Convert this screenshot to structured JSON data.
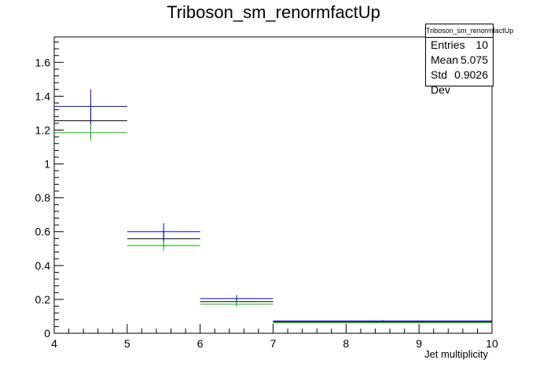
{
  "chart_data": {
    "type": "histogram",
    "title": "Triboson_sm_renormfactUp",
    "xlabel": "Jet multiplicity",
    "ylabel": "",
    "xlim": [
      4,
      10
    ],
    "ylim": [
      0,
      1.75
    ],
    "x_ticks": [
      "4",
      "5",
      "6",
      "7",
      "8",
      "9",
      "10"
    ],
    "y_ticks": [
      "0",
      "0.2",
      "0.4",
      "0.6",
      "0.8",
      "1",
      "1.2",
      "1.4",
      "1.6"
    ],
    "bins": [
      [
        4,
        5
      ],
      [
        5,
        6
      ],
      [
        6,
        7
      ],
      [
        7,
        10
      ]
    ],
    "series": [
      {
        "color": "#000000",
        "values": [
          1.255,
          0.558,
          0.187,
          0.068
        ],
        "errors": [
          0.1,
          0.05,
          0.02,
          0.005
        ]
      },
      {
        "color": "#0000ff",
        "values": [
          1.34,
          0.6,
          0.205,
          0.073
        ],
        "errors": [
          0.1,
          0.05,
          0.02,
          0.005
        ]
      },
      {
        "color": "#00cc00",
        "values": [
          1.185,
          0.517,
          0.172,
          0.062
        ],
        "errors": [
          0.05,
          0.03,
          0.015,
          0.004
        ]
      }
    ],
    "grid": false
  },
  "stats": {
    "title": "Triboson_sm_renormfactUp",
    "rows": [
      {
        "label": "Entries",
        "value": "10"
      },
      {
        "label": "Mean",
        "value": "5.075"
      },
      {
        "label": "Std Dev",
        "value": "0.9026"
      }
    ]
  }
}
